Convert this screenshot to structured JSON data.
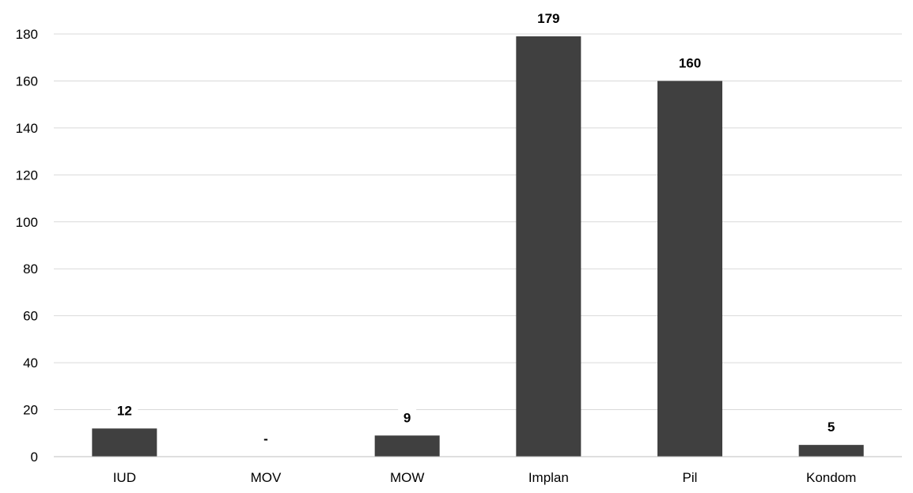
{
  "chart_data": {
    "type": "bar",
    "title": "",
    "xlabel": "",
    "ylabel": "",
    "categories": [
      "IUD",
      "MOV",
      "MOW",
      "Implan",
      "Pil",
      "Kondom"
    ],
    "values": [
      12,
      0,
      9,
      179,
      160,
      5
    ],
    "data_labels": [
      "12",
      "-",
      "9",
      "179",
      "160",
      "5"
    ],
    "ylim": [
      0,
      180
    ],
    "y_ticks": [
      0,
      20,
      40,
      60,
      80,
      100,
      120,
      140,
      160,
      180
    ],
    "grid": true,
    "legend": "none",
    "bar_color": "#404040",
    "label_background": "#ffffff"
  }
}
